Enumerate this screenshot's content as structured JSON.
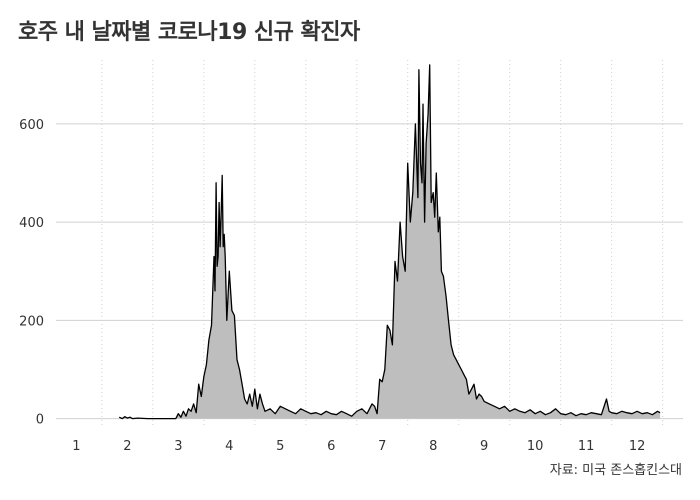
{
  "chart_data": {
    "type": "area",
    "title": "호주 내 날짜별 코로나19 신규 확진자",
    "caption": "자료: 미국 존스홉킨스대",
    "xlabel": "",
    "ylabel": "",
    "x_unit": "month",
    "xlim": [
      0.6,
      12.9
    ],
    "ylim": [
      -15,
      730
    ],
    "x_ticks": [
      1,
      2,
      3,
      4,
      5,
      6,
      7,
      8,
      9,
      10,
      11,
      12
    ],
    "x_tick_labels": [
      "1",
      "2",
      "3",
      "4",
      "5",
      "6",
      "7",
      "8",
      "9",
      "10",
      "11",
      "12"
    ],
    "y_ticks": [
      0,
      200,
      400,
      600
    ],
    "y_tick_labels": [
      "0",
      "200",
      "400",
      "600"
    ],
    "grid": {
      "y_major": true,
      "x_minor_dotted": true
    },
    "series": [
      {
        "x": [
          1.84,
          1.9,
          1.95,
          2.0,
          2.05,
          2.1,
          2.2,
          2.4,
          2.6,
          2.8,
          2.95,
          3.0,
          3.05,
          3.1,
          3.15,
          3.2,
          3.25,
          3.3,
          3.35,
          3.4,
          3.45,
          3.5,
          3.55,
          3.6,
          3.65,
          3.7,
          3.72,
          3.74,
          3.76,
          3.78,
          3.8,
          3.82,
          3.84,
          3.86,
          3.88,
          3.9,
          3.92,
          3.95,
          4.0,
          4.05,
          4.1,
          4.15,
          4.2,
          4.25,
          4.3,
          4.35,
          4.4,
          4.45,
          4.5,
          4.55,
          4.6,
          4.65,
          4.7,
          4.8,
          4.9,
          5.0,
          5.1,
          5.2,
          5.3,
          5.4,
          5.5,
          5.6,
          5.7,
          5.8,
          5.9,
          6.0,
          6.1,
          6.2,
          6.3,
          6.4,
          6.5,
          6.6,
          6.7,
          6.8,
          6.85,
          6.9,
          6.95,
          7.0,
          7.05,
          7.1,
          7.15,
          7.2,
          7.25,
          7.3,
          7.35,
          7.4,
          7.45,
          7.5,
          7.55,
          7.6,
          7.65,
          7.7,
          7.72,
          7.75,
          7.78,
          7.8,
          7.83,
          7.86,
          7.9,
          7.93,
          7.96,
          8.0,
          8.03,
          8.06,
          8.1,
          8.13,
          8.16,
          8.2,
          8.25,
          8.3,
          8.35,
          8.4,
          8.45,
          8.5,
          8.55,
          8.6,
          8.65,
          8.7,
          8.75,
          8.8,
          8.85,
          8.9,
          8.95,
          9.0,
          9.1,
          9.2,
          9.3,
          9.4,
          9.5,
          9.6,
          9.7,
          9.8,
          9.9,
          10.0,
          10.1,
          10.2,
          10.3,
          10.4,
          10.5,
          10.6,
          10.7,
          10.8,
          10.9,
          11.0,
          11.1,
          11.2,
          11.3,
          11.4,
          11.45,
          11.5,
          11.6,
          11.7,
          11.8,
          11.9,
          12.0,
          12.1,
          12.2,
          12.3,
          12.4,
          12.45
        ],
        "y": [
          3,
          0,
          4,
          1,
          3,
          0,
          1,
          0,
          0,
          0,
          0,
          10,
          3,
          15,
          5,
          20,
          15,
          30,
          12,
          70,
          45,
          85,
          110,
          160,
          190,
          330,
          260,
          480,
          310,
          330,
          440,
          350,
          420,
          495,
          350,
          375,
          330,
          200,
          300,
          220,
          210,
          120,
          100,
          70,
          40,
          30,
          50,
          25,
          60,
          20,
          50,
          30,
          15,
          20,
          10,
          25,
          20,
          15,
          10,
          20,
          15,
          10,
          12,
          8,
          15,
          10,
          8,
          15,
          10,
          5,
          15,
          20,
          10,
          30,
          25,
          10,
          80,
          75,
          100,
          190,
          180,
          150,
          320,
          280,
          400,
          330,
          300,
          520,
          400,
          460,
          600,
          450,
          710,
          520,
          480,
          640,
          400,
          560,
          620,
          720,
          440,
          460,
          410,
          500,
          380,
          410,
          300,
          290,
          250,
          200,
          150,
          130,
          120,
          110,
          100,
          90,
          80,
          50,
          60,
          70,
          40,
          50,
          45,
          35,
          30,
          25,
          20,
          25,
          15,
          20,
          15,
          12,
          18,
          10,
          15,
          8,
          12,
          20,
          10,
          8,
          12,
          6,
          10,
          8,
          12,
          10,
          8,
          40,
          15,
          12,
          10,
          15,
          12,
          10,
          15,
          10,
          12,
          8,
          15,
          12
        ]
      }
    ]
  }
}
